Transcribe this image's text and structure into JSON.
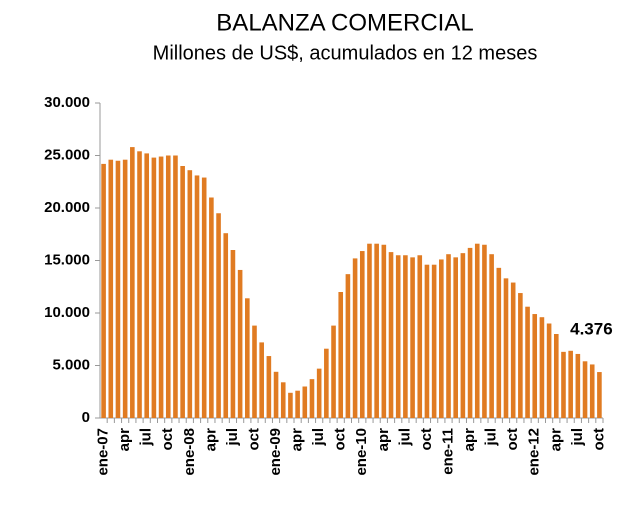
{
  "chart_data": {
    "type": "bar",
    "title": "BALANZA COMERCIAL",
    "subtitle": "Millones de US$, acumulados en 12 meses",
    "categories": [
      "ene-07",
      null,
      null,
      "apr",
      null,
      null,
      "jul",
      null,
      null,
      "oct",
      null,
      null,
      "ene-08",
      null,
      null,
      "apr",
      null,
      null,
      "jul",
      null,
      null,
      "oct",
      null,
      null,
      "ene-09",
      null,
      null,
      "apr",
      null,
      null,
      "jul",
      null,
      null,
      "oct",
      null,
      null,
      "ene-10",
      null,
      null,
      "apr",
      null,
      null,
      "jul",
      null,
      null,
      "oct",
      null,
      null,
      "ene-11",
      null,
      null,
      "apr",
      null,
      null,
      "jul",
      null,
      null,
      "oct",
      null,
      null,
      "ene-12",
      null,
      null,
      "apr",
      null,
      null,
      "jul",
      null,
      null,
      "oct"
    ],
    "values": [
      24200,
      24600,
      24500,
      24600,
      25800,
      25400,
      25200,
      24800,
      24900,
      25000,
      25000,
      24000,
      23600,
      23100,
      22900,
      21000,
      19500,
      17600,
      16000,
      14100,
      11400,
      8800,
      7200,
      5900,
      4400,
      3400,
      2400,
      2600,
      3000,
      3700,
      4700,
      6600,
      8800,
      12000,
      13700,
      15200,
      15900,
      16600,
      16600,
      16500,
      15800,
      15500,
      15500,
      15300,
      15500,
      14600,
      14600,
      15100,
      15600,
      15300,
      15700,
      16200,
      16600,
      16500,
      15600,
      14300,
      13300,
      12900,
      11900,
      10600,
      9900,
      9600,
      9000,
      8000,
      6300,
      6400,
      6100,
      5400,
      5100,
      4376
    ],
    "value_labels": [
      null,
      null,
      null,
      null,
      null,
      null,
      null,
      null,
      null,
      null,
      null,
      null,
      null,
      null,
      null,
      null,
      null,
      null,
      null,
      null,
      null,
      null,
      null,
      null,
      null,
      null,
      null,
      null,
      null,
      null,
      null,
      null,
      null,
      null,
      null,
      null,
      null,
      null,
      null,
      null,
      null,
      null,
      null,
      null,
      null,
      null,
      null,
      null,
      null,
      null,
      null,
      null,
      null,
      null,
      null,
      null,
      null,
      null,
      null,
      null,
      null,
      null,
      null,
      null,
      null,
      null,
      null,
      null,
      null,
      "4.376"
    ],
    "color": "#e07b22",
    "ylim": [
      0,
      30000
    ],
    "yticks": [
      0,
      {
        "value": 5000,
        "label": "5.000"
      },
      {
        "value": 10000,
        "label": "10.000"
      },
      {
        "value": 15000,
        "label": "15.000"
      },
      {
        "value": 20000,
        "label": "20.000"
      },
      {
        "value": 25000,
        "label": "25.000"
      },
      {
        "value": 30000,
        "label": "30.000"
      }
    ],
    "grid": false
  }
}
